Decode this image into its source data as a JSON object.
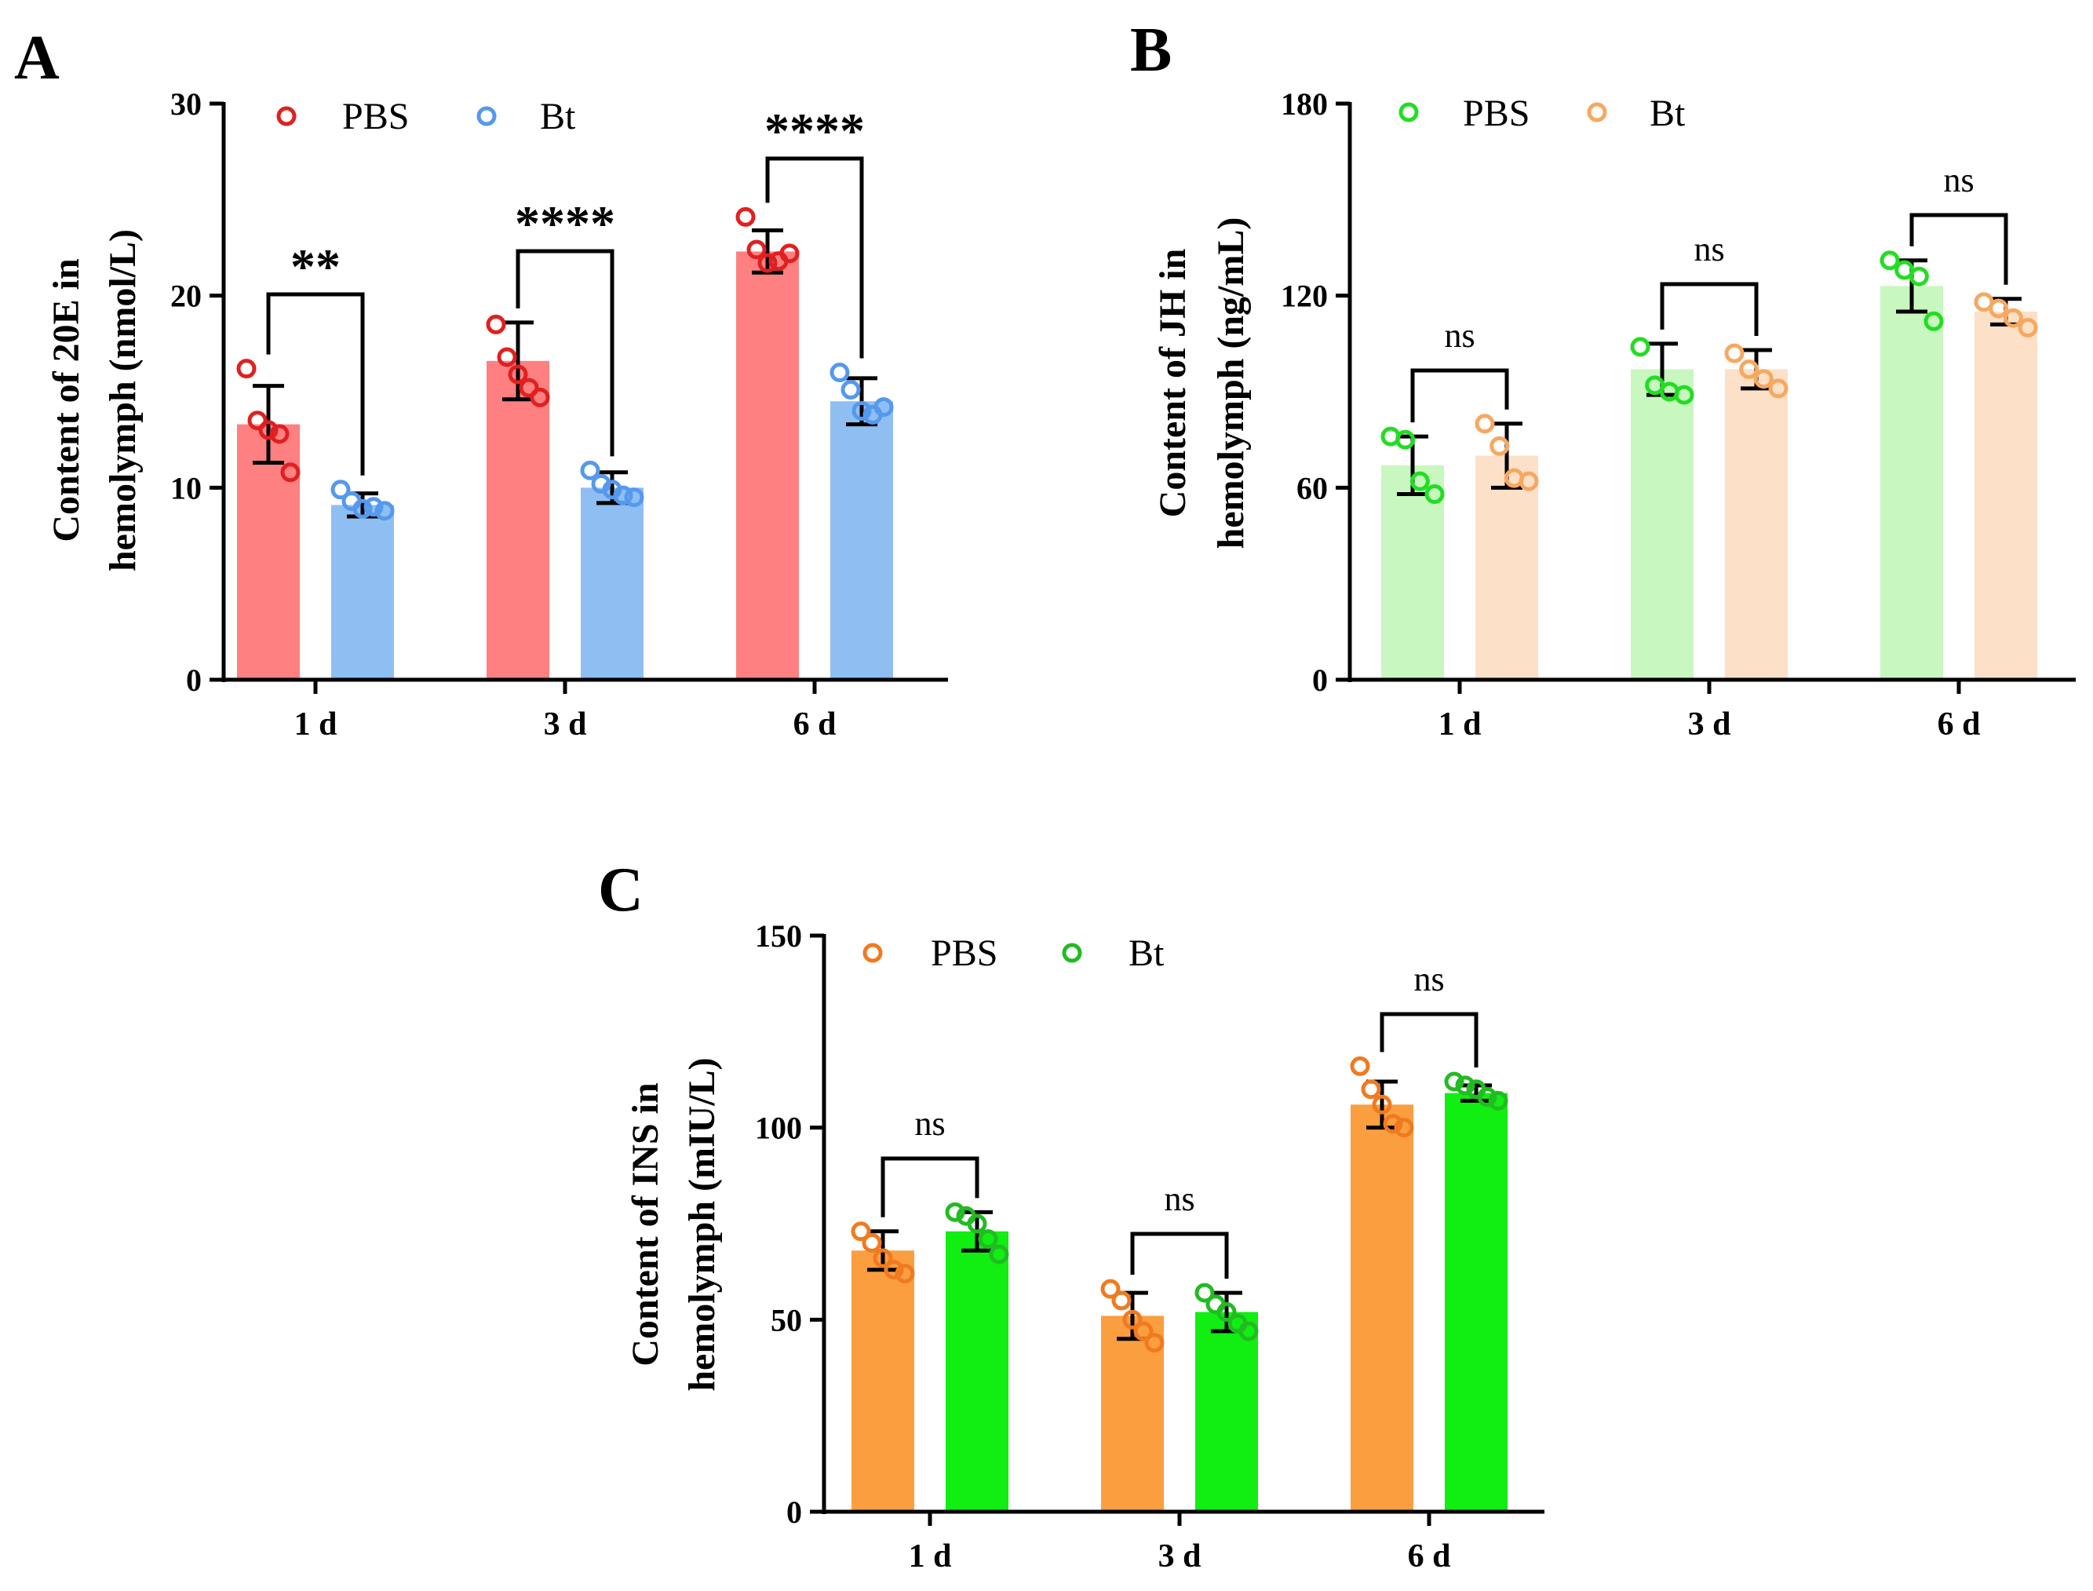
{
  "chart_data": [
    {
      "panel": "A",
      "type": "bar",
      "ylabel_line1": "Content of 20E in",
      "ylabel_line2": "hemolymph (nmol/L)",
      "ylim": [
        0,
        30
      ],
      "yticks": [
        0,
        10,
        20,
        30
      ],
      "categories": [
        "1 d",
        "3 d",
        "6 d"
      ],
      "series": [
        {
          "name": "PBS",
          "color": "#e02020",
          "fill": "#ff8080",
          "values": [
            13.3,
            16.6,
            22.3
          ],
          "errors": [
            2.0,
            2.0,
            1.1
          ],
          "points": [
            [
              16.2,
              13.5,
              13.0,
              12.8,
              10.8
            ],
            [
              18.5,
              16.8,
              15.9,
              15.2,
              14.7
            ],
            [
              24.1,
              22.4,
              21.7,
              21.8,
              22.2
            ]
          ]
        },
        {
          "name": "Bt",
          "color": "#5599ee",
          "fill": "#8fbff2",
          "values": [
            9.1,
            10.0,
            14.5
          ],
          "errors": [
            0.6,
            0.8,
            1.2
          ],
          "points": [
            [
              9.9,
              9.3,
              8.9,
              9.0,
              8.8
            ],
            [
              10.9,
              10.2,
              9.9,
              9.6,
              9.5
            ],
            [
              16.0,
              15.1,
              14.0,
              13.8,
              14.2
            ]
          ]
        }
      ],
      "significance": [
        "**",
        "****",
        "****"
      ]
    },
    {
      "panel": "B",
      "type": "bar",
      "ylabel_line1": "Content of JH in",
      "ylabel_line2": "hemolymph (ng/mL)",
      "ylim": [
        0,
        180
      ],
      "yticks": [
        0,
        60,
        120,
        180
      ],
      "categories": [
        "1 d",
        "3 d",
        "6 d"
      ],
      "series": [
        {
          "name": "PBS",
          "color": "#22dd22",
          "fill": "#c8f7c0",
          "values": [
            67,
            97,
            123
          ],
          "errors": [
            9,
            8,
            8
          ],
          "points": [
            [
              76,
              75,
              62,
              58
            ],
            [
              104,
              92,
              90,
              89
            ],
            [
              131,
              128,
              126,
              112
            ]
          ]
        },
        {
          "name": "Bt",
          "color": "#f7a860",
          "fill": "#fde0c8",
          "values": [
            70,
            97,
            115
          ],
          "errors": [
            10,
            6,
            4
          ],
          "points": [
            [
              80,
              73,
              63,
              62
            ],
            [
              102,
              97,
              94,
              91
            ],
            [
              118,
              116,
              113,
              110
            ]
          ]
        }
      ],
      "significance": [
        "ns",
        "ns",
        "ns"
      ]
    },
    {
      "panel": "C",
      "type": "bar",
      "ylabel_line1": "Content of INS in",
      "ylabel_line2": "hemolymph (mIU/L)",
      "ylim": [
        0,
        150
      ],
      "yticks": [
        0,
        50,
        100,
        150
      ],
      "categories": [
        "1 d",
        "3 d",
        "6 d"
      ],
      "series": [
        {
          "name": "PBS",
          "color": "#f07a20",
          "fill": "#fa9e40",
          "values": [
            68,
            51,
            106
          ],
          "errors": [
            5,
            6,
            6
          ],
          "points": [
            [
              73,
              70,
              66,
              63,
              62
            ],
            [
              58,
              55,
              50,
              47,
              44
            ],
            [
              116,
              110,
              106,
              101,
              100
            ]
          ]
        },
        {
          "name": "Bt",
          "color": "#22bb22",
          "fill": "#11ee11",
          "values": [
            73,
            52,
            109
          ],
          "errors": [
            5,
            5,
            2
          ],
          "points": [
            [
              78,
              77,
              75,
              71,
              67
            ],
            [
              57,
              54,
              52,
              49,
              47
            ],
            [
              112,
              111,
              110,
              108,
              107
            ]
          ]
        }
      ],
      "significance": [
        "ns",
        "ns",
        "ns"
      ]
    }
  ]
}
